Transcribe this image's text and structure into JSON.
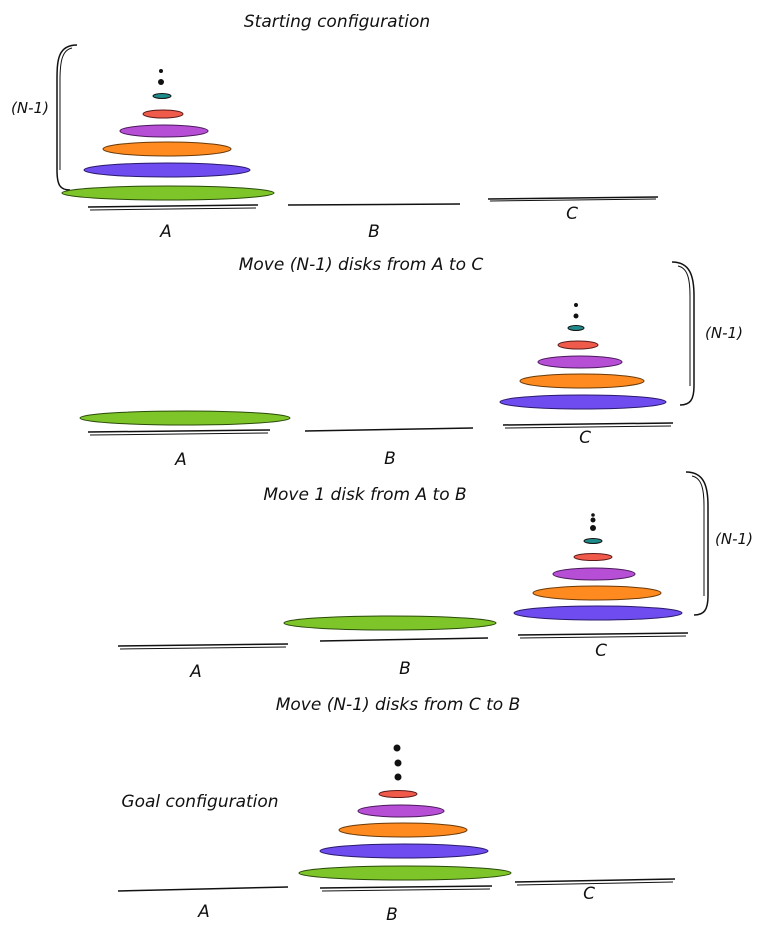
{
  "steps": [
    {
      "caption": "Starting configuration",
      "bracket_label": "(N-1)",
      "pegs": [
        "A",
        "B",
        "C"
      ]
    },
    {
      "caption": "Move (N-1) disks from A to C",
      "bracket_label": "(N-1)",
      "pegs": [
        "A",
        "B",
        "C"
      ]
    },
    {
      "caption": "Move 1 disk from A to B",
      "bracket_label": "(N-1)",
      "pegs": [
        "A",
        "B",
        "C"
      ]
    },
    {
      "caption": "Move (N-1) disks from C to B",
      "side_caption": "Goal configuration",
      "pegs": [
        "A",
        "B",
        "C"
      ]
    }
  ],
  "colors": {
    "green": "#7ec52a",
    "blue": "#6f4cf0",
    "orange": "#ff8a1f",
    "purple": "#b64fd6",
    "red": "#ef5a4a",
    "teal": "#1f8a8a",
    "ink": "#111111"
  }
}
